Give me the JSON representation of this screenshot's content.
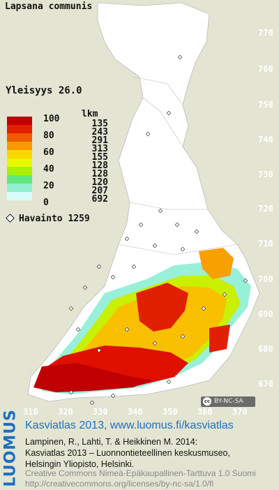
{
  "title": "Lapsana communis",
  "yleisyys": "Yleisyys  26.0",
  "lkm_header": "lkm",
  "legend": [
    {
      "label": "100",
      "count": "135",
      "color": "#c00000"
    },
    {
      "label": "",
      "count": "243",
      "color": "#e02000"
    },
    {
      "label": "80",
      "count": "291",
      "color": "#f05a00"
    },
    {
      "label": "",
      "count": "313",
      "color": "#f89a00"
    },
    {
      "label": "60",
      "count": "155",
      "color": "#f8d800"
    },
    {
      "label": "",
      "count": "128",
      "color": "#e8f800"
    },
    {
      "label": "40",
      "count": "128",
      "color": "#a8f000"
    },
    {
      "label": "",
      "count": "120",
      "color": "#60e880"
    },
    {
      "label": "20",
      "count": "207",
      "color": "#90f0d0"
    },
    {
      "label": "",
      "count": "",
      "color": "#d8fcfc"
    },
    {
      "label": "0",
      "count": "692",
      "color": "#ffffff"
    }
  ],
  "havainto": "Havainto 1259",
  "y_ticks": [
    "770",
    "760",
    "750",
    "740",
    "730",
    "720",
    "710",
    "700",
    "690",
    "680",
    "670"
  ],
  "x_ticks": [
    "310",
    "320",
    "330",
    "340",
    "350",
    "360",
    "370"
  ],
  "cc_badge": "BY-NC-SA",
  "cc_symbol": "cc",
  "footer": {
    "brand": "LUOMUS",
    "headline": "Kasviatlas 2013, www.luomus.fi/kasviatlas",
    "citation_line1": "Lampinen, R., Lahti, T. & Heikkinen M. 2014:",
    "citation_line2": "Kasviatlas 2013 – Luonnontieteellinen keskusmuseo,",
    "citation_line3": "Helsingin Yliopisto, Helsinki.",
    "license_line1": "Creative Commons Nimeä-Epäkaupallinen-Tarttuva 1.0 Suomi",
    "license_line2": "http://creativecommons.org/licenses/by-nc-sa/1.0/fi"
  },
  "colors": {
    "background": "#e3e5d2",
    "land": "#ffffff",
    "brand_blue": "#1e6fc0"
  }
}
